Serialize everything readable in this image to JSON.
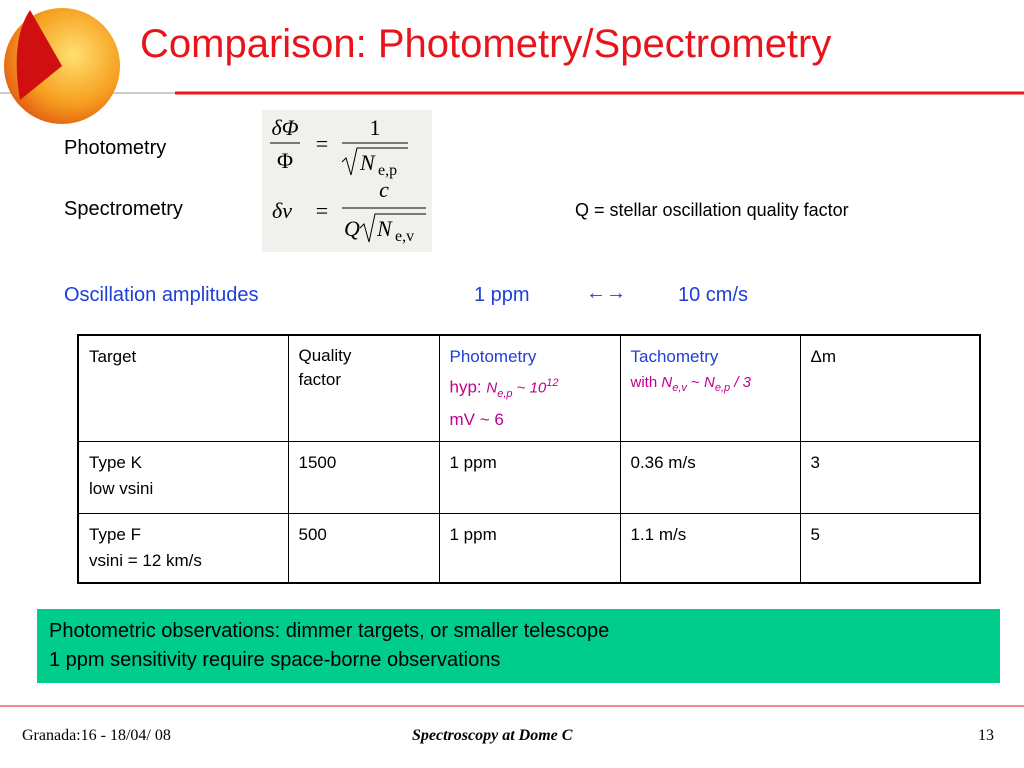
{
  "title": "Comparison: Photometry/Spectrometry",
  "rows": {
    "photometry": "Photometry",
    "spectrometry": "Spectrometry"
  },
  "formulas": [
    {
      "lhs_num": "δΦ",
      "lhs_den": "Φ",
      "eq": "=",
      "rhs_num": "1",
      "rhs_den": "N",
      "sub": "e,p"
    },
    {
      "lhs": "δv",
      "eq": "=",
      "rhs_num": "c",
      "rhs_pre": "Q",
      "rhs_den": "N",
      "sub": "e,v"
    }
  ],
  "q_note": "Q = stellar oscillation quality factor",
  "oscillation": {
    "label": "Oscillation amplitudes",
    "left": "1 ppm",
    "arrows": "←→",
    "right": "10 cm/s"
  },
  "table": {
    "header": [
      [
        "Target"
      ],
      [
        "Quality factor"
      ],
      [
        "Photometry",
        [
          "hyp: ",
          "N",
          "e,p",
          " ~ 10",
          "12"
        ],
        "mV ~ 6"
      ],
      [
        "Tachometry",
        [
          "with ",
          "N",
          "e,v",
          " ~ ",
          "N",
          "e,p",
          " / 3"
        ]
      ],
      [
        "Δm"
      ]
    ],
    "rows": [
      [
        [
          "Type K",
          "low vsini"
        ],
        "1500",
        "1 ppm",
        "0.36 m/s",
        "3"
      ],
      [
        [
          "Type F",
          "vsini = 12 km/s"
        ],
        "500",
        "1 ppm",
        "1.1 m/s",
        "5"
      ]
    ]
  },
  "callout": [
    "Photometric observations: dimmer targets, or smaller telescope",
    "1 ppm sensitivity require space-borne observations"
  ],
  "footer": {
    "left": "Granada:16 - 18/04/ 08",
    "center": "Spectroscopy at Dome C",
    "right": "13"
  }
}
